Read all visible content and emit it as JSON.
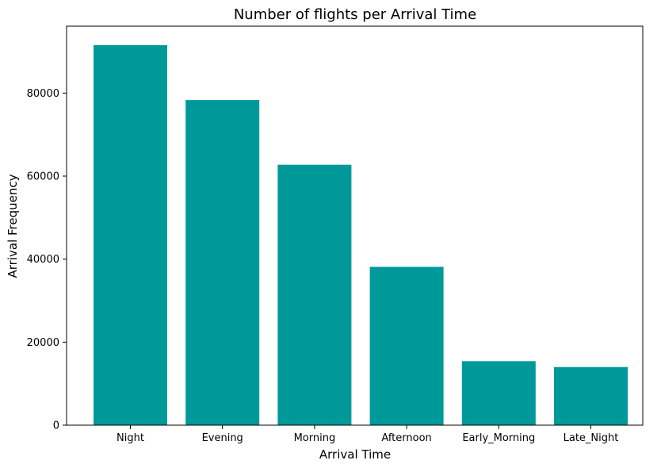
{
  "chart_data": {
    "type": "bar",
    "title": "Number of flights per Arrival Time",
    "xlabel": "Arrival Time",
    "ylabel": "Arrival Frequency",
    "categories": [
      "Night",
      "Evening",
      "Morning",
      "Afternoon",
      "Early_Morning",
      "Late_Night"
    ],
    "values": [
      91538,
      78323,
      62735,
      38139,
      15417,
      14001
    ],
    "ylim": [
      0,
      96115
    ],
    "yticks": [
      0,
      20000,
      40000,
      60000,
      80000
    ],
    "ytick_labels": [
      "0",
      "20000",
      "40000",
      "60000",
      "80000"
    ],
    "bar_color": "#009999",
    "grid": false,
    "legend": "none"
  }
}
